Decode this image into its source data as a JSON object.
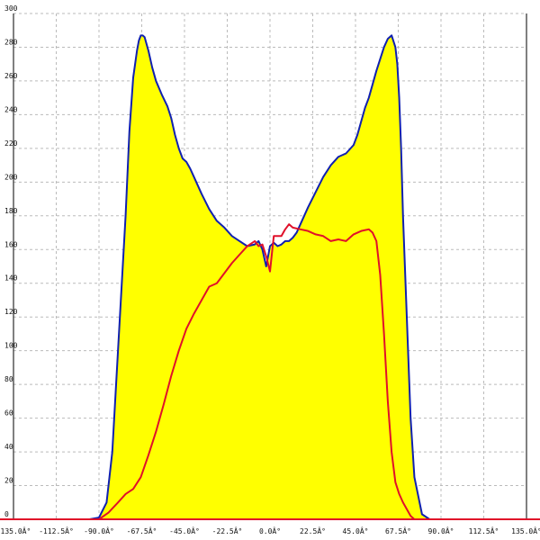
{
  "chart_data": {
    "type": "area",
    "x_tick_labels": [
      "-135.0Â°",
      "-112.5Â°",
      "-90.0Â°",
      "-67.5Â°",
      "-45.0Â°",
      "-22.5Â°",
      "0.0Â°",
      "22.5Â°",
      "45.0Â°",
      "67.5Â°",
      "90.0Â°",
      "112.5Â°",
      "135.0Â°"
    ],
    "y_tick_labels": [
      "0",
      "20",
      "40",
      "60",
      "80",
      "100",
      "120",
      "140",
      "160",
      "180",
      "200",
      "220",
      "240",
      "260",
      "280",
      "300"
    ],
    "xlim": [
      -135,
      135
    ],
    "ylim": [
      0,
      300
    ],
    "grid": true,
    "colors": {
      "fill": "#ffff00",
      "outline": "#1020b0",
      "line": "#e0102a",
      "axis": "#e0102a",
      "grid": "#bbbbbb"
    },
    "series": [
      {
        "style": "filled area with blue outline",
        "x": [
          -135,
          -95,
          -90,
          -86,
          -83,
          -80,
          -76,
          -74,
          -72,
          -70,
          -69,
          -68,
          -67,
          -66,
          -64,
          -62,
          -60,
          -57,
          -54,
          -52,
          -50,
          -48,
          -46,
          -44,
          -42,
          -40,
          -36,
          -32,
          -28,
          -24,
          -20,
          -16,
          -12,
          -8,
          -6,
          -4,
          -2,
          0,
          2,
          4,
          6,
          8,
          10,
          12,
          14,
          16,
          18,
          20,
          24,
          28,
          32,
          36,
          40,
          44,
          46,
          48,
          50,
          52,
          54,
          56,
          58,
          60,
          62,
          64,
          66,
          67,
          68,
          69,
          70,
          72,
          74,
          76,
          80,
          84,
          86,
          88,
          90,
          95,
          135
        ],
        "y": [
          0,
          0,
          1,
          10,
          40,
          100,
          180,
          230,
          262,
          278,
          284,
          287,
          287,
          286,
          278,
          268,
          260,
          252,
          245,
          238,
          228,
          220,
          214,
          212,
          208,
          203,
          193,
          184,
          177,
          173,
          168,
          165,
          162,
          163,
          165,
          160,
          150,
          162,
          164,
          162,
          163,
          165,
          165,
          167,
          170,
          175,
          180,
          185,
          194,
          203,
          210,
          215,
          217,
          222,
          228,
          236,
          244,
          250,
          258,
          266,
          273,
          280,
          285,
          287,
          280,
          270,
          250,
          220,
          180,
          120,
          60,
          25,
          3,
          0,
          0,
          0,
          0,
          0,
          0
        ]
      },
      {
        "style": "red line",
        "x": [
          -135,
          -95,
          -90,
          -85,
          -80,
          -76,
          -72,
          -68,
          -64,
          -60,
          -56,
          -52,
          -48,
          -44,
          -40,
          -36,
          -32,
          -28,
          -24,
          -20,
          -16,
          -12,
          -8,
          -6,
          -4,
          -2,
          0,
          2,
          4,
          6,
          8,
          10,
          12,
          16,
          20,
          24,
          28,
          32,
          36,
          40,
          44,
          48,
          52,
          54,
          56,
          58,
          60,
          62,
          64,
          66,
          68,
          70,
          72,
          74,
          76,
          80,
          84,
          88,
          90,
          95,
          135
        ],
        "y": [
          0,
          0,
          0,
          4,
          10,
          15,
          18,
          25,
          38,
          52,
          68,
          85,
          100,
          113,
          122,
          130,
          138,
          140,
          146,
          152,
          157,
          162,
          165,
          162,
          163,
          156,
          147,
          168,
          168,
          168,
          172,
          175,
          173,
          172,
          171,
          169,
          168,
          165,
          166,
          165,
          169,
          171,
          172,
          170,
          165,
          145,
          110,
          70,
          40,
          22,
          15,
          10,
          6,
          2,
          0,
          0,
          0,
          0,
          0,
          0,
          0
        ]
      }
    ]
  }
}
